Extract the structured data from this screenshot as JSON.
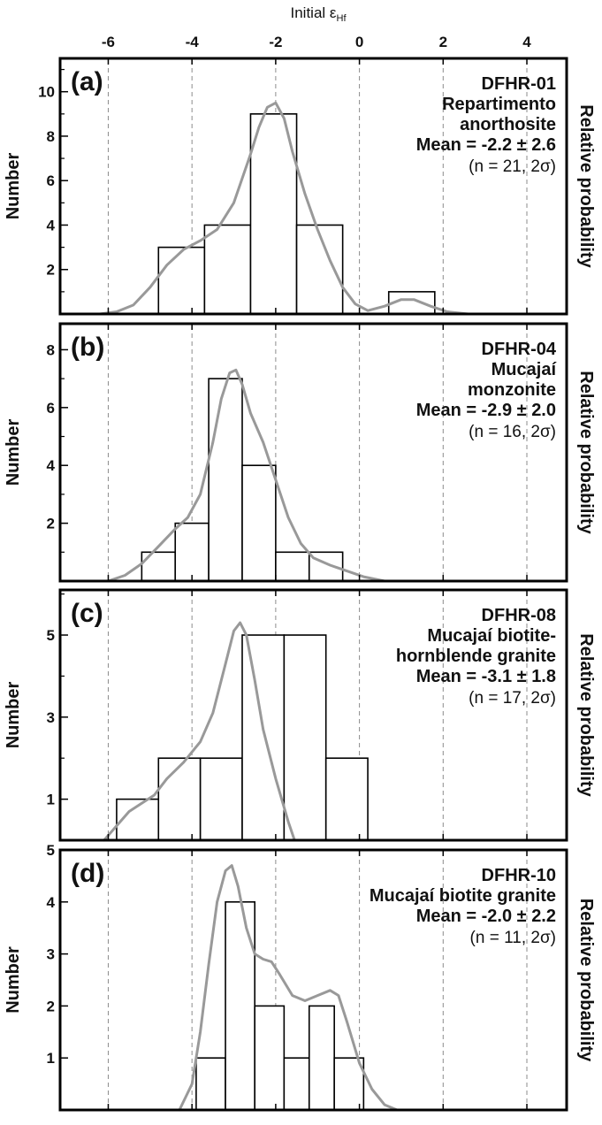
{
  "figure": {
    "x_axis_title": "Initial εHf",
    "x_axis_title_main": "Initial ε",
    "x_axis_title_sub": "Hf",
    "x_ticks": [
      -6,
      -4,
      -2,
      0,
      2,
      4
    ],
    "x_range": [
      -7.15,
      4.95
    ],
    "bar_color": "#ffffff",
    "bar_stroke": "#000000",
    "curve_color": "#999999",
    "gridline_color": "#8c8c8c"
  },
  "chart_data": [
    {
      "type": "bar",
      "panel": "(a)",
      "sample": "DFHR-01",
      "lines": [
        "Repartimento",
        "anorthosite"
      ],
      "mean": "Mean = -2.2 ± 2.6",
      "note": "(n = 21, 2σ)",
      "ylabel": "Number",
      "right_label": "Relative probability",
      "ylim": [
        0,
        11.5
      ],
      "y_ticks": [
        2,
        4,
        6,
        8,
        10
      ],
      "y_minor": [
        1,
        3,
        5,
        7,
        9,
        11
      ],
      "bins": [
        {
          "x0": -4.8,
          "x1": -3.7,
          "count": 3
        },
        {
          "x0": -3.7,
          "x1": -2.6,
          "count": 4
        },
        {
          "x0": -2.6,
          "x1": -1.5,
          "count": 9
        },
        {
          "x0": -1.5,
          "x1": -0.4,
          "count": 4
        },
        {
          "x0": 0.7,
          "x1": 1.8,
          "count": 1
        }
      ],
      "curve": {
        "x": [
          -6.2,
          -5.8,
          -5.4,
          -5.0,
          -4.6,
          -4.2,
          -3.8,
          -3.4,
          -3.0,
          -2.6,
          -2.4,
          -2.2,
          -2.0,
          -1.8,
          -1.6,
          -1.3,
          -1.0,
          -0.7,
          -0.4,
          -0.1,
          0.2,
          0.6,
          1.0,
          1.3,
          1.7,
          2.1,
          2.6
        ],
        "y": [
          0,
          0.1,
          0.4,
          1.2,
          2.2,
          2.9,
          3.3,
          3.8,
          5.0,
          7.2,
          8.4,
          9.3,
          9.5,
          8.8,
          7.3,
          5.4,
          3.8,
          2.4,
          1.2,
          0.45,
          0.15,
          0.35,
          0.65,
          0.65,
          0.35,
          0.1,
          0
        ]
      }
    },
    {
      "type": "bar",
      "panel": "(b)",
      "sample": "DFHR-04",
      "lines": [
        "Mucajaí",
        "monzonite"
      ],
      "mean": "Mean = -2.9 ± 2.0",
      "note": "(n = 16, 2σ)",
      "ylabel": "Number",
      "right_label": "Relative probability",
      "ylim": [
        0,
        8.9
      ],
      "y_ticks": [
        2,
        4,
        6,
        8
      ],
      "y_minor": [
        1,
        3,
        5,
        7
      ],
      "bins": [
        {
          "x0": -5.2,
          "x1": -4.4,
          "count": 1
        },
        {
          "x0": -4.4,
          "x1": -3.6,
          "count": 2
        },
        {
          "x0": -3.6,
          "x1": -2.8,
          "count": 7
        },
        {
          "x0": -2.8,
          "x1": -2.0,
          "count": 4
        },
        {
          "x0": -2.0,
          "x1": -1.2,
          "count": 1
        },
        {
          "x0": -1.2,
          "x1": -0.4,
          "count": 1
        }
      ],
      "curve": {
        "x": [
          -6.0,
          -5.6,
          -5.2,
          -4.8,
          -4.4,
          -4.1,
          -3.8,
          -3.5,
          -3.3,
          -3.1,
          -2.95,
          -2.8,
          -2.6,
          -2.3,
          -2.0,
          -1.7,
          -1.4,
          -1.1,
          -0.7,
          -0.3,
          0.1,
          0.6
        ],
        "y": [
          0,
          0.2,
          0.6,
          1.2,
          1.8,
          2.2,
          3.0,
          4.8,
          6.3,
          7.2,
          7.3,
          6.8,
          5.8,
          4.8,
          3.5,
          2.2,
          1.3,
          0.8,
          0.55,
          0.35,
          0.15,
          0
        ]
      }
    },
    {
      "type": "bar",
      "panel": "(c)",
      "sample": "DFHR-08",
      "lines": [
        "Mucajaí biotite-",
        "hornblende granite"
      ],
      "mean": "Mean = -3.1 ± 1.8",
      "note": "(n = 17, 2σ)",
      "ylabel": "Number",
      "right_label": "Relative probability",
      "ylim": [
        0,
        6.1
      ],
      "y_ticks": [
        1,
        3,
        5
      ],
      "y_minor": [
        2,
        4,
        6
      ],
      "bins": [
        {
          "x0": -5.8,
          "x1": -4.8,
          "count": 1
        },
        {
          "x0": -4.8,
          "x1": -3.8,
          "count": 2
        },
        {
          "x0": -3.8,
          "x1": -2.8,
          "count": 2
        },
        {
          "x0": -2.8,
          "x1": -1.8,
          "count": 5
        },
        {
          "x0": -1.8,
          "x1": -0.8,
          "count": 5
        },
        {
          "x0": -0.8,
          "x1": 0.2,
          "count": 2
        }
      ],
      "curve": {
        "x": [
          -6.1,
          -5.8,
          -5.5,
          -5.2,
          -4.9,
          -4.6,
          -4.2,
          -3.8,
          -3.5,
          -3.2,
          -3.0,
          -2.85,
          -2.7,
          -2.5,
          -2.3,
          -2.0,
          -1.7,
          -1.55
        ],
        "y": [
          0,
          0.35,
          0.7,
          0.9,
          1.1,
          1.5,
          1.9,
          2.4,
          3.1,
          4.3,
          5.1,
          5.3,
          5.0,
          3.9,
          2.7,
          1.5,
          0.45,
          0
        ]
      }
    },
    {
      "type": "bar",
      "panel": "(d)",
      "sample": "DFHR-10",
      "lines": [
        "Mucajaí biotite granite"
      ],
      "mean": "Mean = -2.0 ± 2.2",
      "note": "(n = 11, 2σ)",
      "ylabel": "Number",
      "right_label": "Relative probability",
      "ylim": [
        0,
        5.0
      ],
      "y_ticks": [
        1,
        2,
        3,
        4,
        5
      ],
      "y_minor": [],
      "bins": [
        {
          "x0": -3.9,
          "x1": -3.2,
          "count": 1
        },
        {
          "x0": -3.2,
          "x1": -2.5,
          "count": 4
        },
        {
          "x0": -2.5,
          "x1": -1.8,
          "count": 2
        },
        {
          "x0": -1.8,
          "x1": -1.2,
          "count": 1
        },
        {
          "x0": -1.2,
          "x1": -0.6,
          "count": 2
        },
        {
          "x0": -0.6,
          "x1": 0.1,
          "count": 1
        }
      ],
      "curve": {
        "x": [
          -4.3,
          -4.0,
          -3.8,
          -3.6,
          -3.4,
          -3.2,
          -3.05,
          -2.9,
          -2.7,
          -2.5,
          -2.3,
          -2.1,
          -1.9,
          -1.6,
          -1.3,
          -1.0,
          -0.7,
          -0.5,
          -0.3,
          0.0,
          0.3,
          0.6,
          0.9
        ],
        "y": [
          0,
          0.5,
          1.5,
          2.8,
          4.0,
          4.6,
          4.7,
          4.3,
          3.5,
          3.0,
          2.9,
          2.85,
          2.6,
          2.2,
          2.1,
          2.2,
          2.3,
          2.2,
          1.7,
          0.9,
          0.4,
          0.1,
          0
        ]
      }
    }
  ]
}
